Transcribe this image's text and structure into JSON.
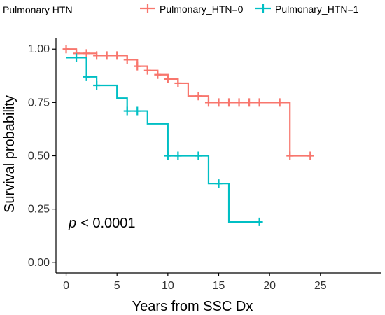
{
  "chart_data": {
    "type": "line",
    "subtype": "kaplan-meier",
    "xlabel": "Years from SSC Dx",
    "ylabel": "Survival probability",
    "xlim": [
      -1,
      31
    ],
    "ylim": [
      -0.05,
      1.05
    ],
    "x_ticks": [
      0,
      5,
      10,
      15,
      20,
      25
    ],
    "y_ticks": [
      0.0,
      0.25,
      0.5,
      0.75,
      1.0
    ],
    "y_tick_labels": [
      "0.00",
      "0.25",
      "0.50",
      "0.75",
      "1.00"
    ],
    "grid": false,
    "legend": {
      "title": "Pulmonary HTN",
      "placement": "top",
      "entries": [
        "Pulmonary_HTN=0",
        "Pulmonary_HTN=1"
      ]
    },
    "annotation": {
      "p_symbol": "p",
      "p_text": "< 0.0001"
    },
    "series": [
      {
        "name": "Pulmonary_HTN=0",
        "color": "#F8766D",
        "steps": [
          [
            0,
            1.0
          ],
          [
            1,
            0.98
          ],
          [
            3,
            0.97
          ],
          [
            6,
            0.95
          ],
          [
            7,
            0.92
          ],
          [
            8,
            0.9
          ],
          [
            9,
            0.88
          ],
          [
            10,
            0.86
          ],
          [
            11,
            0.84
          ],
          [
            12,
            0.78
          ],
          [
            14,
            0.75
          ],
          [
            22,
            0.5
          ],
          [
            24,
            0.5
          ]
        ],
        "censored": [
          [
            0,
            1.0
          ],
          [
            1,
            0.98
          ],
          [
            2,
            0.98
          ],
          [
            3,
            0.97
          ],
          [
            4,
            0.97
          ],
          [
            5,
            0.97
          ],
          [
            6,
            0.95
          ],
          [
            7,
            0.92
          ],
          [
            8,
            0.9
          ],
          [
            9,
            0.88
          ],
          [
            10,
            0.86
          ],
          [
            11,
            0.84
          ],
          [
            13,
            0.78
          ],
          [
            14,
            0.75
          ],
          [
            15,
            0.75
          ],
          [
            16,
            0.75
          ],
          [
            17,
            0.75
          ],
          [
            18,
            0.75
          ],
          [
            19,
            0.75
          ],
          [
            21,
            0.75
          ],
          [
            22,
            0.5
          ],
          [
            24,
            0.5
          ]
        ]
      },
      {
        "name": "Pulmonary_HTN=1",
        "color": "#00BFC4",
        "steps": [
          [
            0,
            0.96
          ],
          [
            2,
            0.87
          ],
          [
            3,
            0.83
          ],
          [
            5,
            0.77
          ],
          [
            6,
            0.71
          ],
          [
            8,
            0.65
          ],
          [
            10,
            0.5
          ],
          [
            14,
            0.37
          ],
          [
            16,
            0.19
          ],
          [
            19,
            0.19
          ]
        ],
        "censored": [
          [
            1,
            0.96
          ],
          [
            2,
            0.87
          ],
          [
            3,
            0.83
          ],
          [
            6,
            0.71
          ],
          [
            7,
            0.71
          ],
          [
            10,
            0.5
          ],
          [
            11,
            0.5
          ],
          [
            13,
            0.5
          ],
          [
            15,
            0.37
          ],
          [
            19,
            0.19
          ]
        ]
      }
    ]
  }
}
